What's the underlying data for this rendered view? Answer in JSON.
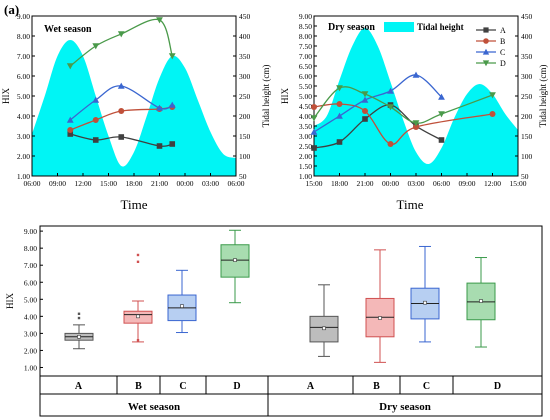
{
  "panel_label": "(a)",
  "colors": {
    "tidal": "#00f5f5",
    "A": "#404040",
    "B": "#c0503a",
    "C": "#3a66d0",
    "D": "#4a9a4a",
    "box_A": "#bdbdbd",
    "box_B": "#f4b8b8",
    "box_C": "#b7cff2",
    "box_D": "#a8dcb0"
  },
  "chart_data": [
    {
      "id": "wet",
      "type": "line",
      "panel_title": "Wet season",
      "xlabel": "Time",
      "ylabel": "HIX",
      "y2label": "Tidal height (cm)",
      "xticks": [
        "06:00",
        "09:00",
        "12:00",
        "15:00",
        "18:00",
        "21:00",
        "00:00",
        "03:00",
        "06:00"
      ],
      "yticks": [
        "1.00",
        "2.00",
        "3.00",
        "4.00",
        "5.00",
        "6.00",
        "7.00",
        "8.00",
        "9.00"
      ],
      "ylim": [
        1,
        9
      ],
      "y2ticks": [
        "50",
        "100",
        "150",
        "200",
        "250",
        "300",
        "350",
        "400",
        "450"
      ],
      "y2lim": [
        50,
        450
      ],
      "tidal_height": {
        "x": [
          0,
          0.5,
          1,
          1.5,
          2,
          2.5,
          3,
          3.5,
          4,
          4.5,
          5,
          5.5,
          6,
          6.5,
          7,
          7.5,
          8
        ],
        "values": [
          155,
          250,
          350,
          390,
          350,
          250,
          150,
          75,
          110,
          200,
          295,
          350,
          320,
          240,
          160,
          105,
          95
        ]
      },
      "series": [
        {
          "name": "A",
          "marker": "square",
          "x": [
            1.5,
            2.5,
            3.5,
            5.0,
            5.5
          ],
          "values": [
            3.1,
            2.8,
            2.95,
            2.5,
            2.6
          ]
        },
        {
          "name": "B",
          "marker": "circle",
          "x": [
            1.5,
            2.5,
            3.5,
            5.0,
            5.5
          ],
          "values": [
            3.3,
            3.8,
            4.25,
            4.35,
            4.45
          ]
        },
        {
          "name": "C",
          "marker": "triangle-up",
          "x": [
            1.5,
            2.5,
            3.5,
            5.0,
            5.5
          ],
          "values": [
            3.8,
            4.8,
            5.5,
            4.4,
            4.55
          ]
        },
        {
          "name": "D",
          "marker": "triangle-down",
          "x": [
            1.5,
            2.5,
            3.5,
            5.0,
            5.5
          ],
          "values": [
            6.5,
            7.5,
            8.1,
            8.8,
            7.0
          ]
        }
      ]
    },
    {
      "id": "dry",
      "type": "line",
      "panel_title": "Dry season",
      "legend_title": "Tidal height",
      "legend_labels": [
        "A",
        "B",
        "C",
        "D"
      ],
      "xlabel": "Time",
      "ylabel": "HIX",
      "y2label": "Tidal height (cm)",
      "xticks": [
        "15:00",
        "18:00",
        "21:00",
        "00:00",
        "03:00",
        "06:00",
        "09:00",
        "12:00",
        "15:00"
      ],
      "yticks": [
        "1.00",
        "1.50",
        "2.00",
        "2.50",
        "3.00",
        "3.50",
        "4.00",
        "4.50",
        "5.00",
        "5.50",
        "6.00",
        "6.50",
        "7.00",
        "7.50",
        "8.00",
        "8.50",
        "9.00"
      ],
      "ylim": [
        1,
        9
      ],
      "y2ticks": [
        "50",
        "100",
        "150",
        "200",
        "250",
        "300",
        "350",
        "400",
        "450"
      ],
      "y2lim": [
        50,
        450
      ],
      "tidal_height": {
        "x": [
          0,
          0.5,
          1,
          1.5,
          2,
          2.5,
          3,
          3.5,
          4,
          4.5,
          5,
          5.5,
          6,
          6.5,
          7,
          7.5,
          8
        ],
        "values": [
          175,
          200,
          290,
          375,
          420,
          375,
          285,
          190,
          110,
          80,
          120,
          195,
          255,
          280,
          255,
          205,
          165
        ]
      },
      "series": [
        {
          "name": "A",
          "marker": "square",
          "x": [
            0,
            1,
            2,
            3,
            4,
            5
          ],
          "values": [
            2.4,
            2.7,
            3.85,
            4.55,
            3.5,
            2.8
          ]
        },
        {
          "name": "B",
          "marker": "circle",
          "x": [
            0,
            1,
            2,
            3,
            4,
            7
          ],
          "values": [
            4.45,
            4.6,
            4.25,
            2.6,
            3.45,
            4.1
          ]
        },
        {
          "name": "C",
          "marker": "triangle-up",
          "x": [
            0,
            1,
            2,
            3,
            4,
            5
          ],
          "values": [
            3.2,
            4.0,
            4.8,
            5.25,
            6.05,
            4.95
          ]
        },
        {
          "name": "D",
          "marker": "triangle-down",
          "x": [
            0,
            1,
            2,
            3,
            4,
            5,
            7
          ],
          "values": [
            3.9,
            5.4,
            5.1,
            4.45,
            3.65,
            4.1,
            5.05
          ]
        }
      ]
    },
    {
      "id": "box",
      "type": "box",
      "ylabel": "HIX",
      "yticks": [
        "1.00",
        "2.00",
        "3.00",
        "4.00",
        "5.00",
        "6.00",
        "7.00",
        "8.00",
        "9.00"
      ],
      "ylim": [
        0.5,
        9.3
      ],
      "groups": [
        {
          "name": "Wet season",
          "categories": [
            "A",
            "B",
            "C",
            "D"
          ]
        },
        {
          "name": "Dry season",
          "categories": [
            "A",
            "B",
            "C",
            "D"
          ]
        }
      ],
      "boxes": [
        {
          "group": "Wet season",
          "category": "A",
          "min": 2.1,
          "q1": 2.6,
          "median": 2.8,
          "q3": 3.0,
          "max": 3.5,
          "mean": 2.8,
          "outliers": [
            3.9,
            4.15
          ]
        },
        {
          "group": "Wet season",
          "category": "B",
          "min": 2.5,
          "q1": 3.6,
          "median": 4.1,
          "q3": 4.3,
          "max": 4.9,
          "mean": 4.0,
          "outliers": [
            7.2,
            7.6,
            2.6
          ]
        },
        {
          "group": "Wet season",
          "category": "C",
          "min": 3.05,
          "q1": 3.75,
          "median": 4.5,
          "q3": 5.25,
          "max": 6.7,
          "mean": 4.6,
          "outliers": []
        },
        {
          "group": "Wet season",
          "category": "D",
          "min": 4.8,
          "q1": 6.3,
          "median": 7.3,
          "q3": 8.2,
          "max": 9.05,
          "mean": 7.3,
          "outliers": []
        },
        {
          "group": "Dry season",
          "category": "A",
          "min": 1.65,
          "q1": 2.5,
          "median": 3.35,
          "q3": 4.0,
          "max": 5.85,
          "mean": 3.3,
          "outliers": []
        },
        {
          "group": "Dry season",
          "category": "B",
          "min": 1.3,
          "q1": 2.8,
          "median": 3.95,
          "q3": 5.05,
          "max": 7.9,
          "mean": 3.9,
          "outliers": []
        },
        {
          "group": "Dry season",
          "category": "C",
          "min": 2.5,
          "q1": 3.85,
          "median": 4.75,
          "q3": 5.65,
          "max": 8.1,
          "mean": 4.8,
          "outliers": []
        },
        {
          "group": "Dry season",
          "category": "D",
          "min": 2.2,
          "q1": 3.8,
          "median": 4.85,
          "q3": 5.95,
          "max": 7.45,
          "mean": 4.9,
          "outliers": []
        }
      ]
    }
  ]
}
